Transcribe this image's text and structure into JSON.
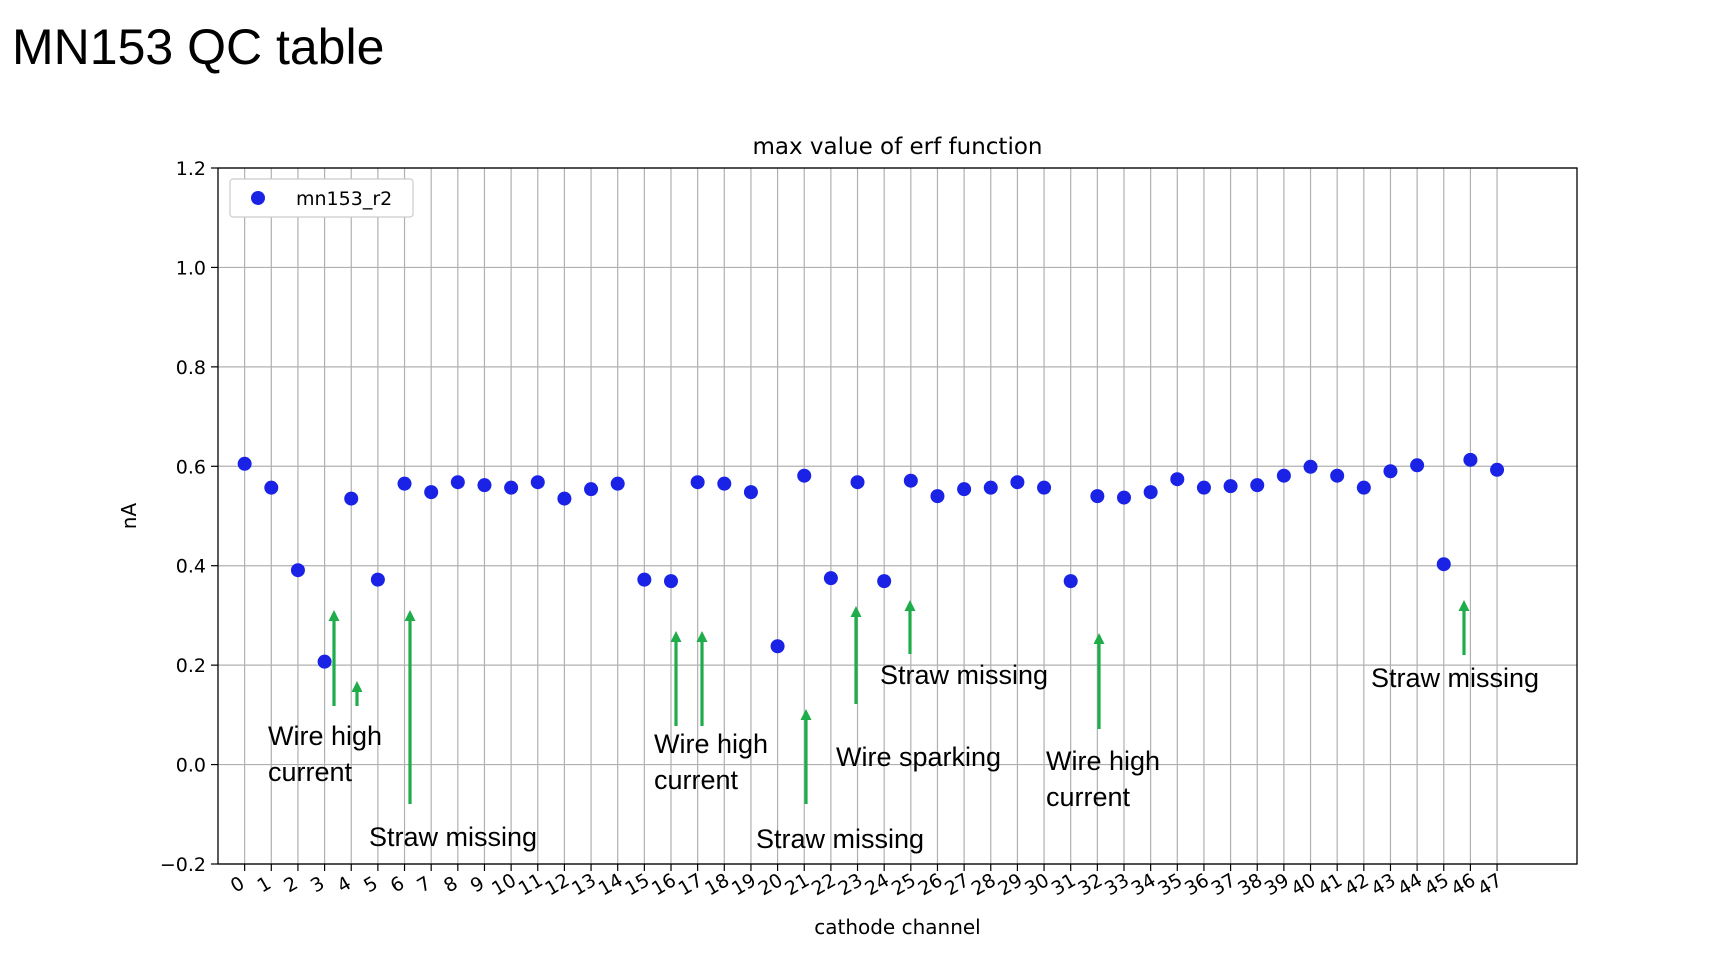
{
  "slide": {
    "title": "MN153 QC table"
  },
  "colors": {
    "marker": "#1a22e6",
    "arrow": "#1fac4a",
    "grid": "#b0b0b0",
    "text": "#000000"
  },
  "chart_data": {
    "type": "scatter",
    "title": "max value of erf function",
    "xlabel": "cathode channel",
    "ylabel": "nA",
    "xlim": [
      -1,
      50
    ],
    "ylim": [
      -0.2,
      1.2
    ],
    "yticks": [
      -0.2,
      0.0,
      0.2,
      0.4,
      0.6,
      0.8,
      1.0,
      1.2
    ],
    "ytick_labels": [
      "−0.2",
      "0.0",
      "0.2",
      "0.4",
      "0.6",
      "0.8",
      "1.0",
      "1.2"
    ],
    "xtick_labels": [
      "0",
      "1",
      "2",
      "3",
      "4",
      "5",
      "6",
      "7",
      "8",
      "9",
      "10",
      "11",
      "12",
      "13",
      "14",
      "15",
      "16",
      "17",
      "18",
      "19",
      "20",
      "21",
      "22",
      "23",
      "24",
      "25",
      "26",
      "27",
      "28",
      "29",
      "30",
      "31",
      "32",
      "33",
      "34",
      "35",
      "36",
      "37",
      "38",
      "39",
      "40",
      "41",
      "42",
      "43",
      "44",
      "45",
      "46",
      "47"
    ],
    "grid": true,
    "legend_position": "upper-left",
    "series": [
      {
        "name": "mn153_r2",
        "color": "#1a22e6",
        "x": [
          0,
          1,
          2,
          3,
          4,
          5,
          6,
          7,
          8,
          9,
          10,
          11,
          12,
          13,
          14,
          15,
          16,
          17,
          18,
          19,
          20,
          21,
          22,
          23,
          24,
          25,
          26,
          27,
          28,
          29,
          30,
          31,
          32,
          33,
          34,
          35,
          36,
          37,
          38,
          39,
          40,
          41,
          42,
          43,
          44,
          45,
          46,
          47
        ],
        "y": [
          0.605,
          0.557,
          0.391,
          0.207,
          0.535,
          0.372,
          0.565,
          0.548,
          0.568,
          0.562,
          0.557,
          0.568,
          0.535,
          0.554,
          0.565,
          0.372,
          0.369,
          0.568,
          0.565,
          0.548,
          0.238,
          0.581,
          0.375,
          0.568,
          0.369,
          0.571,
          0.54,
          0.554,
          0.557,
          0.568,
          0.557,
          0.369,
          0.54,
          0.537,
          0.548,
          0.574,
          0.557,
          0.56,
          0.562,
          0.581,
          0.599,
          0.581,
          0.557,
          0.59,
          0.602,
          0.403,
          0.613,
          0.593
        ]
      }
    ],
    "annotations": [
      {
        "id": "wire-high-current-1",
        "lines": [
          "Wire high",
          "current"
        ]
      },
      {
        "id": "straw-missing-1",
        "lines": [
          "Straw missing"
        ]
      },
      {
        "id": "wire-high-current-2",
        "lines": [
          "Wire high",
          "current"
        ]
      },
      {
        "id": "straw-missing-2",
        "lines": [
          "Straw missing"
        ]
      },
      {
        "id": "wire-sparking",
        "lines": [
          "Wire sparking"
        ]
      },
      {
        "id": "straw-missing-3",
        "lines": [
          "Straw missing"
        ]
      },
      {
        "id": "wire-high-current-3",
        "lines": [
          "Wire high",
          "current"
        ]
      },
      {
        "id": "straw-missing-4",
        "lines": [
          "Straw missing"
        ]
      }
    ]
  }
}
